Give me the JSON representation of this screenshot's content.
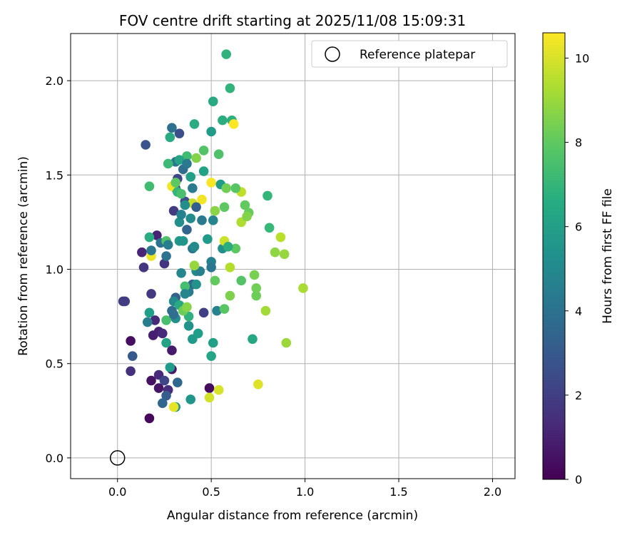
{
  "chart_data": {
    "type": "scatter",
    "title": "FOV centre drift starting at 2025/11/08 15:09:31",
    "xlabel": "Angular distance from reference (arcmin)",
    "ylabel": "Rotation from reference (arcmin)",
    "xlim": [
      -0.25,
      2.12
    ],
    "ylim": [
      -0.11,
      2.25
    ],
    "xticks": [
      "0.0",
      "0.5",
      "1.0",
      "1.5",
      "2.0"
    ],
    "xtick_values": [
      0.0,
      0.5,
      1.0,
      1.5,
      2.0
    ],
    "yticks": [
      "0.0",
      "0.5",
      "1.0",
      "1.5",
      "2.0"
    ],
    "ytick_values": [
      0.0,
      0.5,
      1.0,
      1.5,
      2.0
    ],
    "grid": true,
    "legend": {
      "position": "top-right",
      "label": "Reference platepar"
    },
    "reference_point": {
      "x": 0.0,
      "y": 0.0
    },
    "colorbar": {
      "label": "Hours from first FF file",
      "min": 0,
      "max": 10.6,
      "ticks": [
        "0",
        "2",
        "4",
        "6",
        "8",
        "10"
      ],
      "tick_values": [
        0,
        2,
        4,
        6,
        8,
        10
      ],
      "colormap": "viridis"
    },
    "points": [
      {
        "x": 0.17,
        "y": 0.21,
        "c": 0.2
      },
      {
        "x": 0.49,
        "y": 0.37,
        "c": 0.3
      },
      {
        "x": 0.07,
        "y": 0.62,
        "c": 0.4
      },
      {
        "x": 0.18,
        "y": 0.41,
        "c": 0.5
      },
      {
        "x": 0.22,
        "y": 0.37,
        "c": 0.6
      },
      {
        "x": 0.29,
        "y": 0.47,
        "c": 0.7
      },
      {
        "x": 0.29,
        "y": 0.57,
        "c": 0.8
      },
      {
        "x": 0.19,
        "y": 0.65,
        "c": 0.9
      },
      {
        "x": 0.22,
        "y": 0.67,
        "c": 1.0
      },
      {
        "x": 0.21,
        "y": 1.18,
        "c": 1.0
      },
      {
        "x": 0.13,
        "y": 1.09,
        "c": 1.1
      },
      {
        "x": 0.2,
        "y": 0.73,
        "c": 1.2
      },
      {
        "x": 0.22,
        "y": 0.44,
        "c": 1.3
      },
      {
        "x": 0.27,
        "y": 0.36,
        "c": 1.4
      },
      {
        "x": 0.07,
        "y": 0.46,
        "c": 1.5
      },
      {
        "x": 0.25,
        "y": 1.03,
        "c": 1.6
      },
      {
        "x": 0.14,
        "y": 1.01,
        "c": 1.7
      },
      {
        "x": 0.18,
        "y": 0.87,
        "c": 1.8
      },
      {
        "x": 0.3,
        "y": 1.31,
        "c": 1.9
      },
      {
        "x": 0.46,
        "y": 0.77,
        "c": 2.0
      },
      {
        "x": 0.04,
        "y": 0.83,
        "c": 2.1
      },
      {
        "x": 0.25,
        "y": 0.41,
        "c": 2.2
      },
      {
        "x": 0.32,
        "y": 1.48,
        "c": 2.3
      },
      {
        "x": 0.31,
        "y": 1.43,
        "c": 2.4
      },
      {
        "x": 0.36,
        "y": 1.36,
        "c": 2.5
      },
      {
        "x": 0.33,
        "y": 1.72,
        "c": 2.6
      },
      {
        "x": 0.15,
        "y": 1.66,
        "c": 2.8
      },
      {
        "x": 0.08,
        "y": 0.54,
        "c": 3.0
      },
      {
        "x": 0.26,
        "y": 0.33,
        "c": 3.1
      },
      {
        "x": 0.31,
        "y": 0.85,
        "c": 3.2
      },
      {
        "x": 0.4,
        "y": 0.92,
        "c": 3.3
      },
      {
        "x": 0.37,
        "y": 1.21,
        "c": 3.4
      },
      {
        "x": 0.24,
        "y": 0.29,
        "c": 3.5
      },
      {
        "x": 0.32,
        "y": 0.4,
        "c": 3.6
      },
      {
        "x": 0.29,
        "y": 0.78,
        "c": 3.7
      },
      {
        "x": 0.35,
        "y": 1.53,
        "c": 3.8
      },
      {
        "x": 0.29,
        "y": 1.75,
        "c": 3.9
      },
      {
        "x": 0.23,
        "y": 1.14,
        "c": 4.0
      },
      {
        "x": 0.4,
        "y": 1.11,
        "c": 4.1
      },
      {
        "x": 0.31,
        "y": 1.57,
        "c": 4.2
      },
      {
        "x": 0.45,
        "y": 1.26,
        "c": 4.3
      },
      {
        "x": 0.38,
        "y": 0.88,
        "c": 4.4
      },
      {
        "x": 0.16,
        "y": 0.72,
        "c": 4.5
      },
      {
        "x": 0.5,
        "y": 1.04,
        "c": 4.6
      },
      {
        "x": 0.53,
        "y": 0.78,
        "c": 4.7
      },
      {
        "x": 0.51,
        "y": 1.26,
        "c": 4.8
      },
      {
        "x": 0.34,
        "y": 0.98,
        "c": 4.9
      },
      {
        "x": 0.3,
        "y": 0.83,
        "c": 5.0
      },
      {
        "x": 0.42,
        "y": 0.99,
        "c": 5.1
      },
      {
        "x": 0.33,
        "y": 1.25,
        "c": 5.2
      },
      {
        "x": 0.56,
        "y": 1.11,
        "c": 5.3
      },
      {
        "x": 0.38,
        "y": 0.7,
        "c": 5.4
      },
      {
        "x": 0.31,
        "y": 0.27,
        "c": 5.5
      },
      {
        "x": 0.39,
        "y": 0.31,
        "c": 5.6
      },
      {
        "x": 0.4,
        "y": 0.63,
        "c": 5.7
      },
      {
        "x": 0.5,
        "y": 1.73,
        "c": 5.8
      },
      {
        "x": 0.43,
        "y": 0.66,
        "c": 5.9
      },
      {
        "x": 0.51,
        "y": 0.61,
        "c": 6.0
      },
      {
        "x": 0.26,
        "y": 0.61,
        "c": 6.1
      },
      {
        "x": 0.5,
        "y": 0.54,
        "c": 6.2
      },
      {
        "x": 0.72,
        "y": 0.63,
        "c": 6.3
      },
      {
        "x": 0.51,
        "y": 1.89,
        "c": 6.4
      },
      {
        "x": 0.41,
        "y": 1.77,
        "c": 6.5
      },
      {
        "x": 0.56,
        "y": 1.79,
        "c": 6.6
      },
      {
        "x": 0.61,
        "y": 1.79,
        "c": 6.7
      },
      {
        "x": 0.58,
        "y": 2.14,
        "c": 6.8
      },
      {
        "x": 0.6,
        "y": 1.96,
        "c": 6.9
      },
      {
        "x": 0.8,
        "y": 1.39,
        "c": 7.0
      },
      {
        "x": 0.81,
        "y": 1.22,
        "c": 7.1
      },
      {
        "x": 0.27,
        "y": 1.56,
        "c": 7.2
      },
      {
        "x": 0.17,
        "y": 1.44,
        "c": 7.3
      },
      {
        "x": 0.36,
        "y": 0.91,
        "c": 7.4
      },
      {
        "x": 0.26,
        "y": 0.73,
        "c": 7.5
      },
      {
        "x": 0.54,
        "y": 1.61,
        "c": 7.6
      },
      {
        "x": 0.46,
        "y": 1.63,
        "c": 7.7
      },
      {
        "x": 0.57,
        "y": 0.79,
        "c": 7.8
      },
      {
        "x": 0.63,
        "y": 1.11,
        "c": 7.9
      },
      {
        "x": 0.68,
        "y": 1.34,
        "c": 8.0
      },
      {
        "x": 0.7,
        "y": 1.3,
        "c": 8.1
      },
      {
        "x": 0.74,
        "y": 0.86,
        "c": 8.2
      },
      {
        "x": 0.74,
        "y": 0.9,
        "c": 8.3
      },
      {
        "x": 0.73,
        "y": 0.97,
        "c": 8.4
      },
      {
        "x": 0.6,
        "y": 0.86,
        "c": 8.5
      },
      {
        "x": 0.42,
        "y": 1.59,
        "c": 8.6
      },
      {
        "x": 0.52,
        "y": 1.31,
        "c": 8.7
      },
      {
        "x": 0.84,
        "y": 1.09,
        "c": 8.8
      },
      {
        "x": 0.89,
        "y": 1.08,
        "c": 8.9
      },
      {
        "x": 0.9,
        "y": 0.61,
        "c": 9.0
      },
      {
        "x": 0.79,
        "y": 0.78,
        "c": 9.1
      },
      {
        "x": 0.99,
        "y": 0.9,
        "c": 9.2
      },
      {
        "x": 0.66,
        "y": 1.25,
        "c": 9.3
      },
      {
        "x": 0.6,
        "y": 1.01,
        "c": 9.4
      },
      {
        "x": 0.87,
        "y": 1.17,
        "c": 9.5
      },
      {
        "x": 0.66,
        "y": 1.41,
        "c": 9.6
      },
      {
        "x": 0.4,
        "y": 1.35,
        "c": 9.7
      },
      {
        "x": 0.57,
        "y": 1.15,
        "c": 9.8
      },
      {
        "x": 0.49,
        "y": 0.32,
        "c": 9.9
      },
      {
        "x": 0.54,
        "y": 0.36,
        "c": 10.0
      },
      {
        "x": 0.75,
        "y": 0.39,
        "c": 10.1
      },
      {
        "x": 0.3,
        "y": 0.27,
        "c": 10.2
      },
      {
        "x": 0.18,
        "y": 1.07,
        "c": 10.3
      },
      {
        "x": 0.29,
        "y": 1.44,
        "c": 10.4
      },
      {
        "x": 0.5,
        "y": 1.46,
        "c": 10.5
      },
      {
        "x": 0.62,
        "y": 1.77,
        "c": 10.6
      },
      {
        "x": 0.45,
        "y": 1.37,
        "c": 10.4
      },
      {
        "x": 0.26,
        "y": 1.15,
        "c": 7.6
      },
      {
        "x": 0.32,
        "y": 1.41,
        "c": 7.0
      },
      {
        "x": 0.37,
        "y": 1.6,
        "c": 7.3
      },
      {
        "x": 0.28,
        "y": 1.7,
        "c": 6.5
      },
      {
        "x": 0.33,
        "y": 1.58,
        "c": 6.2
      },
      {
        "x": 0.33,
        "y": 0.81,
        "c": 6.4
      },
      {
        "x": 0.38,
        "y": 0.75,
        "c": 6.8
      },
      {
        "x": 0.42,
        "y": 0.92,
        "c": 5.4
      },
      {
        "x": 0.44,
        "y": 0.99,
        "c": 4.6
      },
      {
        "x": 0.48,
        "y": 1.16,
        "c": 5.7
      },
      {
        "x": 0.5,
        "y": 1.01,
        "c": 4.2
      },
      {
        "x": 0.55,
        "y": 1.45,
        "c": 5.8
      },
      {
        "x": 0.59,
        "y": 1.12,
        "c": 6.6
      },
      {
        "x": 0.63,
        "y": 1.43,
        "c": 7.8
      },
      {
        "x": 0.58,
        "y": 1.43,
        "c": 8.3
      },
      {
        "x": 0.69,
        "y": 1.28,
        "c": 8.6
      },
      {
        "x": 0.66,
        "y": 0.94,
        "c": 7.7
      },
      {
        "x": 0.52,
        "y": 0.94,
        "c": 8.0
      },
      {
        "x": 0.57,
        "y": 1.33,
        "c": 7.9
      },
      {
        "x": 0.46,
        "y": 1.52,
        "c": 6.1
      },
      {
        "x": 0.41,
        "y": 1.12,
        "c": 5.1
      },
      {
        "x": 0.34,
        "y": 1.29,
        "c": 4.7
      },
      {
        "x": 0.36,
        "y": 1.34,
        "c": 5.2
      },
      {
        "x": 0.39,
        "y": 1.49,
        "c": 6.0
      },
      {
        "x": 0.31,
        "y": 1.46,
        "c": 7.9
      },
      {
        "x": 0.34,
        "y": 1.4,
        "c": 7.5
      },
      {
        "x": 0.35,
        "y": 0.78,
        "c": 8.2
      },
      {
        "x": 0.37,
        "y": 0.8,
        "c": 8.7
      },
      {
        "x": 0.41,
        "y": 1.02,
        "c": 8.9
      },
      {
        "x": 0.17,
        "y": 1.17,
        "c": 6.5
      },
      {
        "x": 0.17,
        "y": 0.77,
        "c": 5.9
      },
      {
        "x": 0.28,
        "y": 0.48,
        "c": 5.8
      },
      {
        "x": 0.24,
        "y": 0.66,
        "c": 1.3
      },
      {
        "x": 0.03,
        "y": 0.83,
        "c": 1.9
      },
      {
        "x": 0.18,
        "y": 1.1,
        "c": 4.2
      },
      {
        "x": 0.26,
        "y": 1.07,
        "c": 4.0
      },
      {
        "x": 0.27,
        "y": 1.13,
        "c": 4.5
      },
      {
        "x": 0.33,
        "y": 1.15,
        "c": 5.6
      },
      {
        "x": 0.31,
        "y": 0.74,
        "c": 5.3
      },
      {
        "x": 0.36,
        "y": 0.87,
        "c": 4.9
      },
      {
        "x": 0.35,
        "y": 1.15,
        "c": 5.5
      },
      {
        "x": 0.39,
        "y": 1.27,
        "c": 5.1
      },
      {
        "x": 0.37,
        "y": 1.56,
        "c": 4.3
      },
      {
        "x": 0.4,
        "y": 1.43,
        "c": 4.4
      },
      {
        "x": 0.42,
        "y": 1.33,
        "c": 3.2
      },
      {
        "x": 0.3,
        "y": 0.76,
        "c": 3.8
      }
    ]
  }
}
